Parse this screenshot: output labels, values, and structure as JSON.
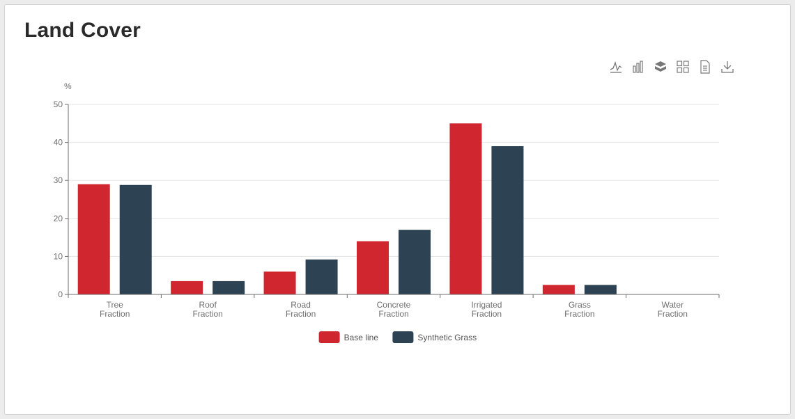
{
  "header": {
    "title": "Land Cover"
  },
  "toolbox": [
    {
      "name": "line-chart-icon"
    },
    {
      "name": "bar-chart-icon"
    },
    {
      "name": "stack-icon"
    },
    {
      "name": "data-view-icon"
    },
    {
      "name": "document-icon"
    },
    {
      "name": "download-icon"
    }
  ],
  "chart_data": {
    "type": "bar",
    "title": "",
    "ylabel": "%",
    "xlabel": "",
    "ylim": [
      0,
      50
    ],
    "yticks": [
      0,
      10,
      20,
      30,
      40,
      50
    ],
    "grid": true,
    "legend_position": "bottom",
    "categories": [
      [
        "Tree",
        "Fraction"
      ],
      [
        "Roof",
        "Fraction"
      ],
      [
        "Road",
        "Fraction"
      ],
      [
        "Concrete",
        "Fraction"
      ],
      [
        "Irrigated",
        "Fraction"
      ],
      [
        "Grass",
        "Fraction"
      ],
      [
        "Water",
        "Fraction"
      ]
    ],
    "series": [
      {
        "name": "Base line",
        "color": "#d0262f",
        "values": [
          29,
          3.5,
          6,
          14,
          45,
          2.5,
          0
        ]
      },
      {
        "name": "Synthetic Grass",
        "color": "#2d4252",
        "values": [
          28.8,
          3.5,
          9.2,
          17,
          39,
          2.5,
          0
        ]
      }
    ]
  }
}
